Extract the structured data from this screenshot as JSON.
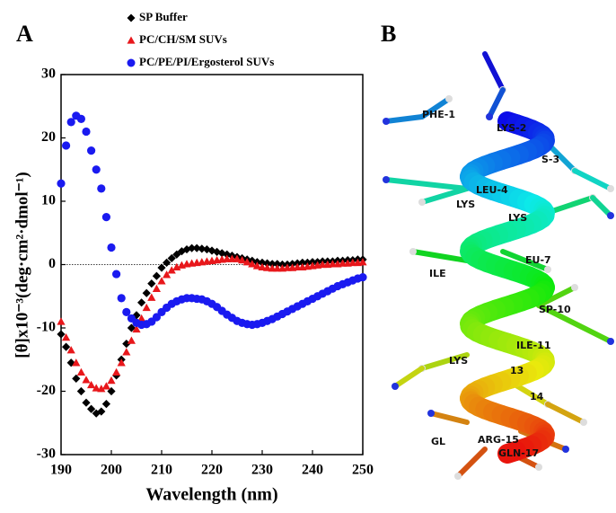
{
  "chart_data": {
    "type": "scatter",
    "panel_label": "A",
    "xlabel": "Wavelength (nm)",
    "ylabel": "[θ]x10⁻³(deg·cm²·dmol⁻¹)",
    "xlim": [
      190,
      250
    ],
    "xticks": [
      190,
      200,
      210,
      220,
      230,
      240,
      250
    ],
    "ylim": [
      -30,
      30
    ],
    "yticks": [
      -30,
      -20,
      -10,
      0,
      10,
      20,
      30
    ],
    "x": [
      190,
      191,
      192,
      193,
      194,
      195,
      196,
      197,
      198,
      199,
      200,
      201,
      202,
      203,
      204,
      205,
      206,
      207,
      208,
      209,
      210,
      211,
      212,
      213,
      214,
      215,
      216,
      217,
      218,
      219,
      220,
      221,
      222,
      223,
      224,
      225,
      226,
      227,
      228,
      229,
      230,
      231,
      232,
      233,
      234,
      235,
      236,
      237,
      238,
      239,
      240,
      241,
      242,
      243,
      244,
      245,
      246,
      247,
      248,
      249,
      250
    ],
    "series": [
      {
        "name": "SP Buffer",
        "color": "#000000",
        "marker": "diamond",
        "values": [
          -11,
          -13,
          -15.5,
          -18,
          -20,
          -21.8,
          -22.8,
          -23.5,
          -23.2,
          -22,
          -20,
          -17.5,
          -15,
          -12.5,
          -10,
          -8,
          -6,
          -4.5,
          -3,
          -1.8,
          -0.5,
          0.3,
          1,
          1.6,
          2.1,
          2.4,
          2.6,
          2.6,
          2.5,
          2.4,
          2.2,
          2,
          1.8,
          1.6,
          1.4,
          1.2,
          1,
          0.8,
          0.6,
          0.4,
          0.3,
          0.2,
          0.1,
          0.1,
          0,
          0,
          0.1,
          0.2,
          0.3,
          0.3,
          0.4,
          0.4,
          0.5,
          0.5,
          0.5,
          0.6,
          0.6,
          0.7,
          0.7,
          0.8,
          0.8
        ]
      },
      {
        "name": "PC/CH/SM SUVs",
        "color": "#e8171b",
        "marker": "triangle",
        "values": [
          -9,
          -11.5,
          -13.5,
          -15.5,
          -17,
          -18.2,
          -19,
          -19.5,
          -19.6,
          -19.2,
          -18.3,
          -17,
          -15.5,
          -13.8,
          -12,
          -10.2,
          -8.5,
          -6.8,
          -5.2,
          -3.8,
          -2.6,
          -1.6,
          -0.9,
          -0.4,
          -0.1,
          0.1,
          0.2,
          0.3,
          0.4,
          0.5,
          0.6,
          0.7,
          0.8,
          0.9,
          0.9,
          0.9,
          0.7,
          0.4,
          0.1,
          -0.2,
          -0.4,
          -0.5,
          -0.6,
          -0.6,
          -0.6,
          -0.5,
          -0.5,
          -0.4,
          -0.4,
          -0.3,
          -0.2,
          -0.1,
          0,
          0,
          0.1,
          0.1,
          0.2,
          0.2,
          0.3,
          0.3,
          0.4
        ]
      },
      {
        "name": "PC/PE/PI/Ergosterol SUVs",
        "color": "#1a1af0",
        "marker": "circle",
        "values": [
          12.8,
          18.8,
          22.5,
          23.5,
          23,
          21,
          18,
          15,
          12,
          7.5,
          2.7,
          -1.5,
          -5.3,
          -7.5,
          -8.5,
          -9.2,
          -9.5,
          -9.4,
          -9,
          -8.3,
          -7.5,
          -6.8,
          -6.2,
          -5.8,
          -5.5,
          -5.3,
          -5.3,
          -5.4,
          -5.5,
          -5.8,
          -6.2,
          -6.7,
          -7.3,
          -7.9,
          -8.4,
          -8.9,
          -9.2,
          -9.4,
          -9.5,
          -9.4,
          -9.2,
          -8.9,
          -8.6,
          -8.2,
          -7.8,
          -7.4,
          -7,
          -6.6,
          -6.2,
          -5.8,
          -5.4,
          -5,
          -4.6,
          -4.2,
          -3.8,
          -3.4,
          -3.1,
          -2.8,
          -2.5,
          -2.2,
          -2
        ]
      }
    ]
  },
  "panel_b": {
    "label": "B",
    "residues": [
      "PHE-1",
      "LYS-2",
      "S-3",
      "LEU-4",
      "LYS",
      "LYS",
      "EU-7",
      "ILE",
      "SP-10",
      "ILE-11",
      "LYS",
      "13",
      "14",
      "ARG-15",
      "GL",
      "GLN-17"
    ]
  }
}
